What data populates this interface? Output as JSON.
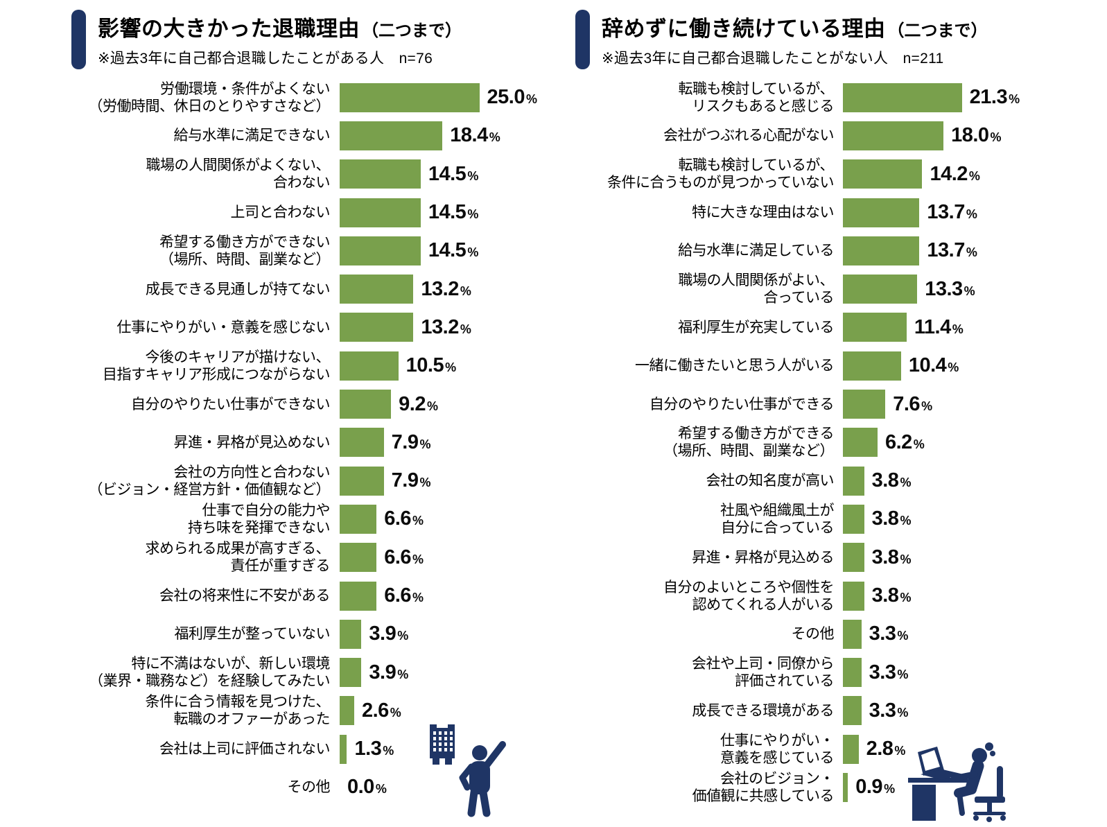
{
  "page": {
    "background": "#ffffff"
  },
  "colors": {
    "bar": "#79a04c",
    "accent_navy": "#1f3565",
    "text": "#000000"
  },
  "icons": {
    "left": "building-and-person-raising-hand-icon",
    "right": "person-working-at-desk-icon"
  },
  "chart_data": [
    {
      "type": "bar",
      "orientation": "horizontal",
      "title": "影響の大きかった退職理由",
      "title_suffix": "（二つまで）",
      "subtitle": "※過去3年に自己都合退職したことがある人　n=76",
      "n": 76,
      "unit": "%",
      "xlim": [
        0,
        26
      ],
      "grid": false,
      "legend": false,
      "bar_color": "#79a04c",
      "categories": [
        "労働環境・条件がよくない\n（労働時間、休日のとりやすさなど）",
        "給与水準に満足できない",
        "職場の人間関係がよくない、\n合わない",
        "上司と合わない",
        "希望する働き方ができない\n（場所、時間、副業など）",
        "成長できる見通しが持てない",
        "仕事にやりがい・意義を感じない",
        "今後のキャリアが描けない、\n目指すキャリア形成につながらない",
        "自分のやりたい仕事ができない",
        "昇進・昇格が見込めない",
        "会社の方向性と合わない\n（ビジョン・経営方針・価値観など）",
        "仕事で自分の能力や\n持ち味を発揮できない",
        "求められる成果が高すぎる、\n責任が重すぎる",
        "会社の将来性に不安がある",
        "福利厚生が整っていない",
        "特に不満はないが、新しい環境\n（業界・職務など）を経験してみたい",
        "条件に合う情報を見つけた、\n転職のオファーがあった",
        "会社は上司に評価されない",
        "その他"
      ],
      "values": [
        25.0,
        18.4,
        14.5,
        14.5,
        14.5,
        13.2,
        13.2,
        10.5,
        9.2,
        7.9,
        7.9,
        6.6,
        6.6,
        6.6,
        3.9,
        3.9,
        2.6,
        1.3,
        0.0
      ],
      "value_labels": [
        "25.0",
        "18.4",
        "14.5",
        "14.5",
        "14.5",
        "13.2",
        "13.2",
        "10.5",
        "9.2",
        "7.9",
        "7.9",
        "6.6",
        "6.6",
        "6.6",
        "3.9",
        "3.9",
        "2.6",
        "1.3",
        "0.0"
      ]
    },
    {
      "type": "bar",
      "orientation": "horizontal",
      "title": "辞めずに働き続けている理由",
      "title_suffix": "（二つまで）",
      "subtitle": "※過去3年に自己都合退職したことがない人　n=211",
      "n": 211,
      "unit": "%",
      "xlim": [
        0,
        22
      ],
      "grid": false,
      "legend": false,
      "bar_color": "#79a04c",
      "categories": [
        "転職も検討しているが、\nリスクもあると感じる",
        "会社がつぶれる心配がない",
        "転職も検討しているが、\n条件に合うものが見つかっていない",
        "特に大きな理由はない",
        "給与水準に満足している",
        "職場の人間関係がよい、\n合っている",
        "福利厚生が充実している",
        "一緒に働きたいと思う人がいる",
        "自分のやりたい仕事ができる",
        "希望する働き方ができる\n（場所、時間、副業など）",
        "会社の知名度が高い",
        "社風や組織風土が\n自分に合っている",
        "昇進・昇格が見込める",
        "自分のよいところや個性を\n認めてくれる人がいる",
        "その他",
        "会社や上司・同僚から\n評価されている",
        "成長できる環境がある",
        "仕事にやりがい・\n意義を感じている",
        "会社のビジョン・\n価値観に共感している"
      ],
      "values": [
        21.3,
        18.0,
        14.2,
        13.7,
        13.7,
        13.3,
        11.4,
        10.4,
        7.6,
        6.2,
        3.8,
        3.8,
        3.8,
        3.8,
        3.3,
        3.3,
        3.3,
        2.8,
        0.9
      ],
      "value_labels": [
        "21.3",
        "18.0",
        "14.2",
        "13.7",
        "13.7",
        "13.3",
        "11.4",
        "10.4",
        "7.6",
        "6.2",
        "3.8",
        "3.8",
        "3.8",
        "3.8",
        "3.3",
        "3.3",
        "3.3",
        "2.8",
        "0.9"
      ]
    }
  ]
}
